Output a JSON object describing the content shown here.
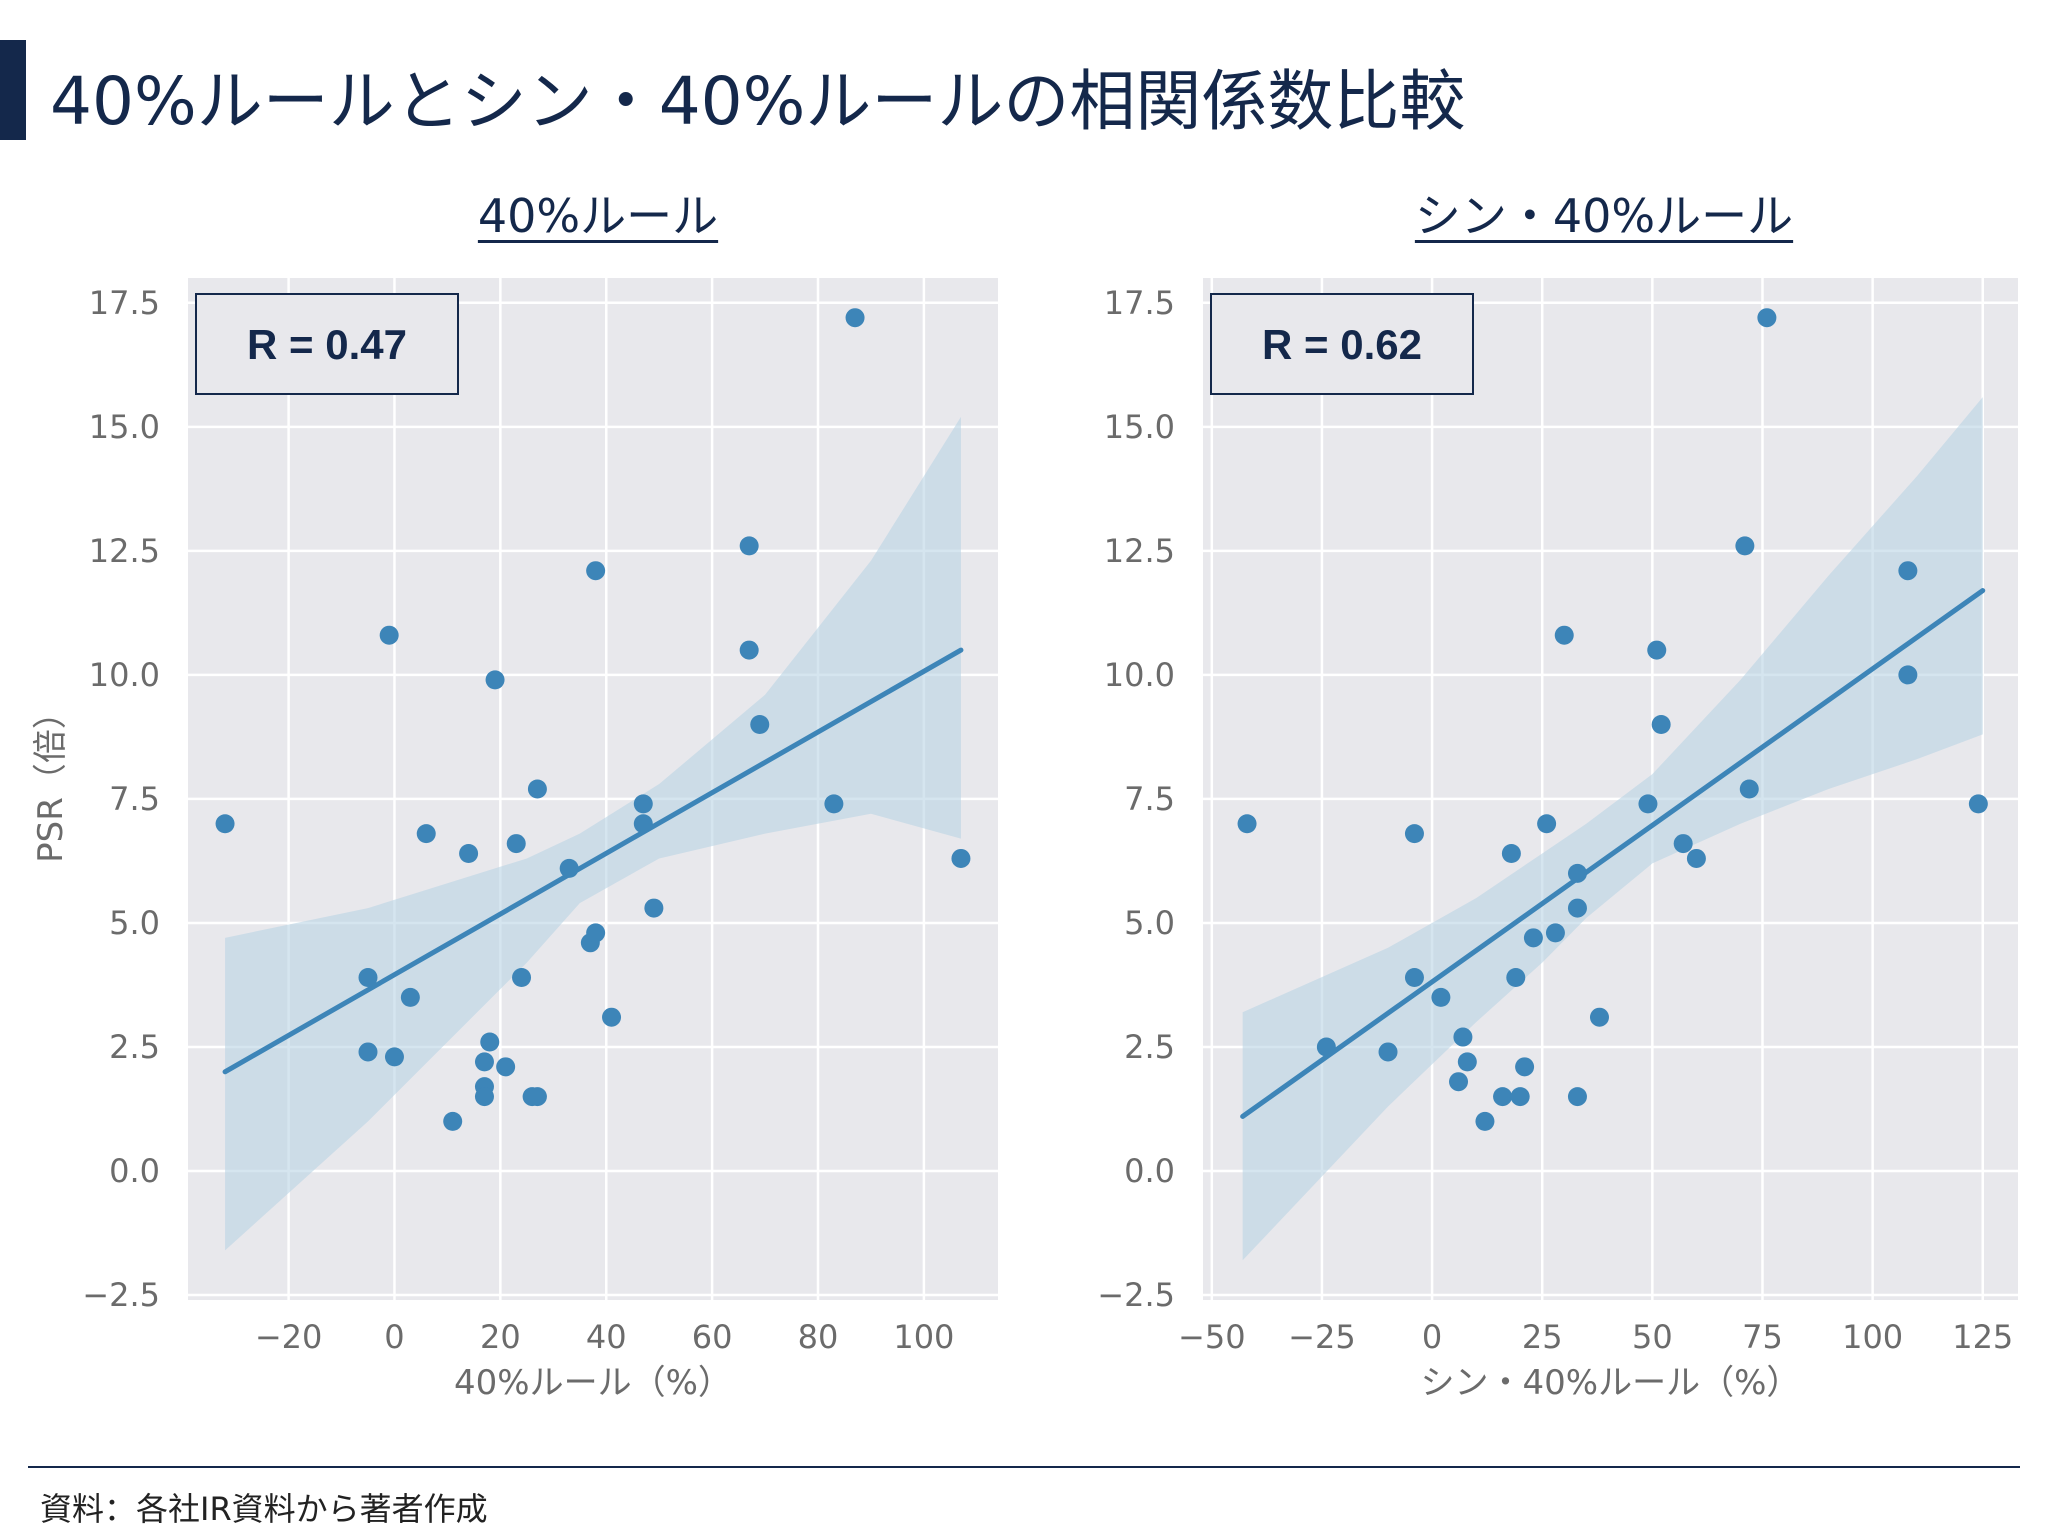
{
  "page": {
    "title": "40%ルールとシン・40%ルールの相関係数比較",
    "source": "資料：各社IR資料から著者作成"
  },
  "colors": {
    "accent": "#14284b",
    "point": "#3d85b8",
    "ci_band": "#b9d3e5",
    "plot_bg": "#e8e8ec"
  },
  "chart_data": [
    {
      "type": "scatter",
      "title": "40%ルール",
      "annotation": "R = 0.47",
      "xlabel": "40%ルール（%）",
      "ylabel": "PSR（倍）",
      "xlim": [
        -39,
        114
      ],
      "ylim": [
        -2.6,
        18.0
      ],
      "xticks": [
        "−20",
        "0",
        "20",
        "40",
        "60",
        "80",
        "100"
      ],
      "yticks": [
        "−2.5",
        "0.0",
        "2.5",
        "5.0",
        "7.5",
        "10.0",
        "12.5",
        "15.0",
        "17.5"
      ],
      "xtick_values": [
        -20,
        0,
        20,
        40,
        60,
        80,
        100
      ],
      "ytick_values": [
        -2.5,
        0,
        2.5,
        5,
        7.5,
        10,
        12.5,
        15,
        17.5
      ],
      "grid": true,
      "regression": {
        "x": [
          -32,
          107
        ],
        "y": [
          2.0,
          10.5
        ]
      },
      "ci_band": {
        "x": [
          -32,
          -5,
          10,
          25,
          35,
          50,
          70,
          90,
          107
        ],
        "lower": [
          -1.6,
          1.0,
          2.6,
          4.2,
          5.4,
          6.3,
          6.8,
          7.2,
          6.7
        ],
        "upper": [
          4.7,
          5.3,
          5.8,
          6.3,
          6.8,
          7.8,
          9.6,
          12.3,
          15.2
        ]
      },
      "points": {
        "x": [
          -32,
          -5,
          -5,
          -1,
          0,
          3,
          6,
          11,
          14,
          17,
          17,
          17,
          18,
          19,
          21,
          23,
          24,
          26,
          27,
          27,
          33,
          37,
          38,
          38,
          41,
          47,
          47,
          49,
          67,
          67,
          69,
          83,
          87,
          107
        ],
        "y": [
          7.0,
          3.9,
          2.4,
          10.8,
          2.3,
          3.5,
          6.8,
          1.0,
          6.4,
          2.2,
          1.7,
          1.5,
          2.6,
          9.9,
          2.1,
          6.6,
          3.9,
          1.5,
          1.5,
          7.7,
          6.1,
          4.6,
          12.1,
          4.8,
          3.1,
          7.0,
          7.4,
          5.3,
          10.5,
          12.6,
          9.0,
          7.4,
          17.2,
          6.3
        ]
      }
    },
    {
      "type": "scatter",
      "title": "シン・40%ルール",
      "annotation": "R = 0.62",
      "xlabel": "シン・40%ルール（%）",
      "ylabel": "",
      "xlim": [
        -52,
        133
      ],
      "ylim": [
        -2.6,
        18.0
      ],
      "xticks": [
        "−50",
        "−25",
        "0",
        "25",
        "50",
        "75",
        "100",
        "125"
      ],
      "yticks": [
        "−2.5",
        "0.0",
        "2.5",
        "5.0",
        "7.5",
        "10.0",
        "12.5",
        "15.0",
        "17.5"
      ],
      "xtick_values": [
        -50,
        -25,
        0,
        25,
        50,
        75,
        100,
        125
      ],
      "ytick_values": [
        -2.5,
        0,
        2.5,
        5,
        7.5,
        10,
        12.5,
        15,
        17.5
      ],
      "grid": true,
      "regression": {
        "x": [
          -43,
          125
        ],
        "y": [
          1.1,
          11.7
        ]
      },
      "ci_band": {
        "x": [
          -43,
          -10,
          10,
          25,
          35,
          50,
          70,
          90,
          110,
          125
        ],
        "lower": [
          -1.8,
          1.3,
          3.0,
          4.2,
          5.1,
          6.2,
          7.0,
          7.7,
          8.3,
          8.8
        ],
        "upper": [
          3.2,
          4.5,
          5.5,
          6.4,
          7.0,
          8.0,
          9.9,
          12.0,
          14.0,
          15.6
        ]
      },
      "points": {
        "x": [
          -42,
          -24,
          -10,
          -4,
          -4,
          2,
          6,
          7,
          8,
          12,
          16,
          18,
          19,
          20,
          21,
          23,
          26,
          28,
          30,
          33,
          33,
          33,
          38,
          49,
          51,
          52,
          57,
          60,
          71,
          72,
          76,
          108,
          108,
          124
        ],
        "y": [
          7.0,
          2.5,
          2.4,
          3.9,
          6.8,
          3.5,
          1.8,
          2.7,
          2.2,
          1.0,
          1.5,
          6.4,
          3.9,
          1.5,
          2.1,
          4.7,
          7.0,
          4.8,
          10.8,
          5.3,
          6.0,
          1.5,
          3.1,
          7.4,
          10.5,
          9.0,
          6.6,
          6.3,
          12.6,
          7.7,
          17.2,
          12.1,
          10.0,
          7.4
        ]
      }
    }
  ]
}
